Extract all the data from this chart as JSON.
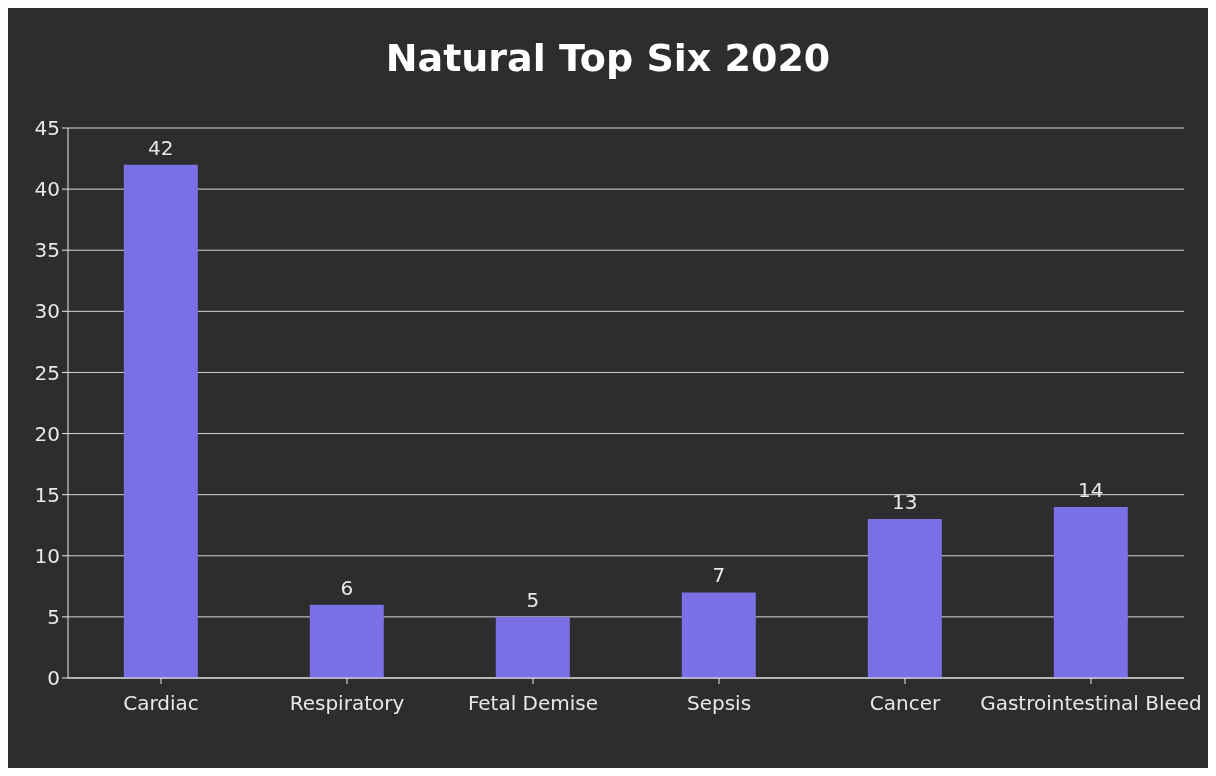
{
  "chart_data": {
    "type": "bar",
    "title": "Natural Top Six 2020",
    "categories": [
      "Cardiac",
      "Respiratory",
      "Fetal Demise",
      "Sepsis",
      "Cancer",
      "Gastrointestinal Bleed"
    ],
    "values": [
      42,
      6,
      5,
      7,
      13,
      14
    ],
    "color": "#7b70e6",
    "ylim": [
      0,
      45
    ],
    "yticks": [
      0,
      5,
      10,
      15,
      20,
      25,
      30,
      35,
      40,
      45
    ],
    "grid": "y",
    "data_labels": true
  }
}
